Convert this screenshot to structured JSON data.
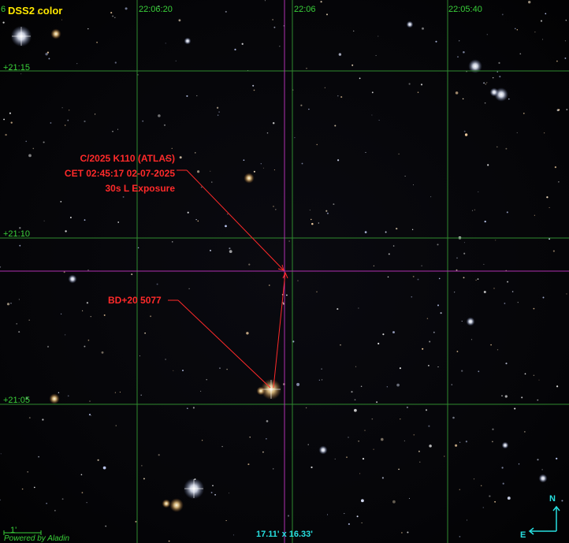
{
  "survey": {
    "name": "DSS2 color",
    "index": "6"
  },
  "ra_labels": [
    "22:06:20",
    "22:06",
    "22:05:40"
  ],
  "dec_labels": [
    "+21:15",
    "+21:10",
    "+21:05"
  ],
  "target": {
    "name": "C/2025 K110 (ATLAS)",
    "time": "CET 02:45:17 02-07-2025",
    "exposure": "30s L Exposure"
  },
  "reference_star": {
    "name": "BD+20 5077"
  },
  "field_of_view": "17.11' x 16.33'",
  "scale_bar": {
    "label": "1'"
  },
  "credit": "Powered by Aladin",
  "compass": {
    "north": "N",
    "east": "E"
  },
  "colors": {
    "grid": "#2f8a2f",
    "crosshair": "#b030b0",
    "annotation": "#ff2a2a",
    "survey_label": "#ffe800",
    "overlay_text": "#27e0e0"
  }
}
